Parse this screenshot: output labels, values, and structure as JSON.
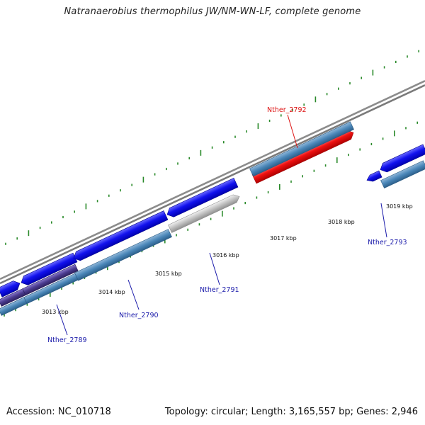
{
  "title": "Natranaerobius thermophilus JW/NM-WN-LF, complete genome",
  "footer": {
    "accession": "Accession: NC_010718",
    "summary": "Topology: circular; Length: 3,165,557 bp; Genes: 2,946"
  },
  "colors": {
    "gene_blue": "#1010ee",
    "gene_steel": "#4a86b8",
    "gene_red": "#ee1111",
    "gene_grey": "#c0c0c0",
    "gene_purple": "#4b3b8f",
    "backbone": "#8a8a8a",
    "tick_green": "#2a8a2a",
    "label_blue": "#1a1aaa",
    "label_red": "#dd1111"
  },
  "scale_labels": [
    "3013 kbp",
    "3014 kbp",
    "3015 kbp",
    "3016 kbp",
    "3017 kbp",
    "3018 kbp",
    "3019 kbp"
  ],
  "gene_labels": [
    {
      "name": "Nther_2789",
      "color": "blue"
    },
    {
      "name": "Nther_2790",
      "color": "blue"
    },
    {
      "name": "Nther_2791",
      "color": "blue"
    },
    {
      "name": "Nther_2792",
      "color": "red"
    },
    {
      "name": "Nther_2793",
      "color": "blue"
    }
  ]
}
